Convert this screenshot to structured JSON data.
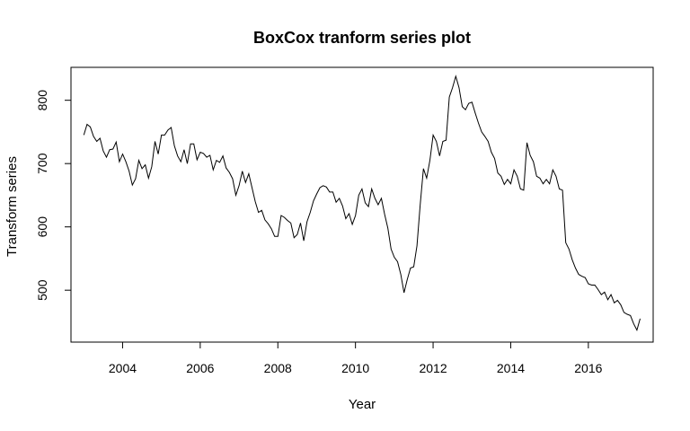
{
  "chart_data": {
    "type": "line",
    "title": "BoxCox tranform series plot",
    "xlabel": "Year",
    "ylabel": "Transform series",
    "xlim": [
      2002.67,
      2017.67
    ],
    "ylim": [
      418,
      852
    ],
    "x_ticks": [
      2004,
      2006,
      2008,
      2010,
      2012,
      2014,
      2016
    ],
    "x_tick_labels": [
      "2004",
      "2006",
      "2008",
      "2010",
      "2012",
      "2014",
      "2016"
    ],
    "y_ticks": [
      500,
      600,
      700,
      800
    ],
    "y_tick_labels": [
      "500",
      "600",
      "700",
      "800"
    ],
    "grid": false,
    "legend": "none",
    "line_color": "#000000",
    "x_start": 2003.0,
    "x_step": 0.083333,
    "series": [
      {
        "values": [
          745,
          762,
          758,
          743,
          735,
          740,
          720,
          710,
          722,
          723,
          734,
          703,
          715,
          703,
          688,
          666,
          676,
          705,
          692,
          698,
          677,
          695,
          735,
          715,
          745,
          745,
          753,
          757,
          728,
          712,
          703,
          722,
          700,
          731,
          731,
          706,
          718,
          716,
          710,
          713,
          690,
          705,
          702,
          712,
          693,
          686,
          676,
          650,
          665,
          688,
          670,
          684,
          662,
          640,
          623,
          626,
          611,
          605,
          597,
          585,
          585,
          618,
          615,
          610,
          606,
          583,
          588,
          606,
          578,
          608,
          623,
          641,
          652,
          662,
          665,
          663,
          655,
          655,
          639,
          645,
          633,
          613,
          621,
          604,
          618,
          650,
          660,
          638,
          632,
          660,
          645,
          635,
          645,
          620,
          598,
          565,
          552,
          545,
          525,
          496,
          517,
          535,
          537,
          570,
          635,
          692,
          677,
          705,
          745,
          735,
          712,
          735,
          737,
          805,
          820,
          838,
          820,
          790,
          785,
          795,
          797,
          780,
          764,
          750,
          743,
          735,
          718,
          708,
          685,
          680,
          667,
          675,
          668,
          690,
          680,
          660,
          658,
          733,
          713,
          703,
          680,
          677,
          668,
          675,
          668,
          690,
          680,
          660,
          658,
          575,
          565,
          548,
          535,
          525,
          522,
          520,
          510,
          508,
          508,
          501,
          493,
          497,
          485,
          493,
          480,
          484,
          477,
          465,
          462,
          460,
          447,
          437,
          455
        ]
      }
    ]
  }
}
